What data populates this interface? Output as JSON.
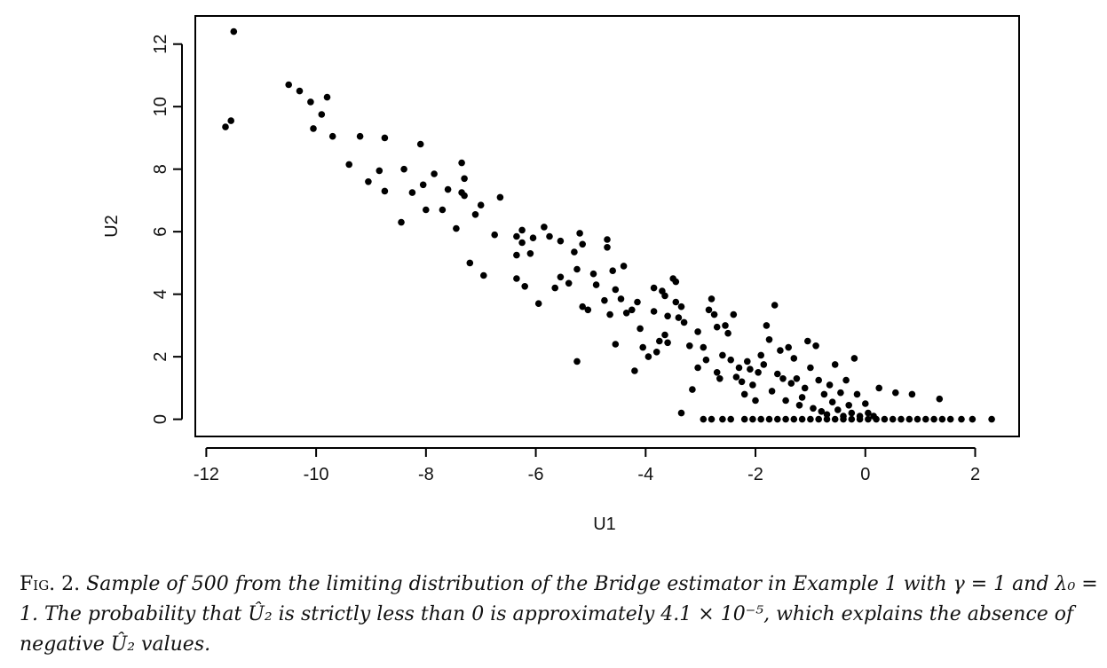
{
  "chart_data": {
    "type": "scatter",
    "title": "",
    "xlabel": "U1",
    "ylabel": "U2",
    "xlim": [
      -12.2,
      2.8
    ],
    "ylim": [
      -0.55,
      12.9
    ],
    "xticks": [
      -12,
      -10,
      -8,
      -6,
      -4,
      -2,
      0,
      2
    ],
    "yticks": [
      0,
      2,
      4,
      6,
      8,
      10,
      12
    ],
    "xtick_labels": [
      "-12",
      "-10",
      "-8",
      "-6",
      "-4",
      "-2",
      "0",
      "2"
    ],
    "ytick_labels": [
      "0",
      "2",
      "4",
      "6",
      "8",
      "10",
      "12"
    ],
    "grid": false,
    "sample_size": 500,
    "points": [
      [
        -11.5,
        12.4
      ],
      [
        -11.55,
        9.55
      ],
      [
        -11.65,
        9.35
      ],
      [
        -10.5,
        10.7
      ],
      [
        -10.3,
        10.5
      ],
      [
        -10.1,
        10.15
      ],
      [
        -10.05,
        9.3
      ],
      [
        -9.9,
        9.75
      ],
      [
        -9.8,
        10.3
      ],
      [
        -9.7,
        9.05
      ],
      [
        -9.4,
        8.15
      ],
      [
        -9.2,
        9.05
      ],
      [
        -9.05,
        7.6
      ],
      [
        -8.85,
        7.95
      ],
      [
        -8.75,
        7.3
      ],
      [
        -8.75,
        9.0
      ],
      [
        -8.45,
        6.3
      ],
      [
        -8.4,
        8.0
      ],
      [
        -8.25,
        7.25
      ],
      [
        -8.1,
        8.8
      ],
      [
        -8.05,
        7.5
      ],
      [
        -8.0,
        6.7
      ],
      [
        -7.85,
        7.85
      ],
      [
        -7.7,
        6.7
      ],
      [
        -7.6,
        7.35
      ],
      [
        -7.45,
        6.1
      ],
      [
        -7.35,
        8.2
      ],
      [
        -7.35,
        7.25
      ],
      [
        -7.3,
        7.7
      ],
      [
        -7.3,
        7.15
      ],
      [
        -7.2,
        5.0
      ],
      [
        -7.1,
        6.55
      ],
      [
        -7.0,
        6.85
      ],
      [
        -6.95,
        4.6
      ],
      [
        -6.75,
        5.9
      ],
      [
        -6.65,
        7.1
      ],
      [
        -6.35,
        5.85
      ],
      [
        -6.35,
        5.25
      ],
      [
        -6.35,
        4.5
      ],
      [
        -6.25,
        6.05
      ],
      [
        -6.25,
        5.65
      ],
      [
        -6.1,
        5.3
      ],
      [
        -6.05,
        5.8
      ],
      [
        -6.2,
        4.25
      ],
      [
        -5.95,
        3.7
      ],
      [
        -5.85,
        6.15
      ],
      [
        -5.75,
        5.85
      ],
      [
        -5.65,
        4.2
      ],
      [
        -5.55,
        5.7
      ],
      [
        -5.55,
        4.55
      ],
      [
        -5.4,
        4.35
      ],
      [
        -5.3,
        5.35
      ],
      [
        -5.25,
        4.8
      ],
      [
        -5.2,
        5.95
      ],
      [
        -5.15,
        5.6
      ],
      [
        -5.15,
        3.6
      ],
      [
        -5.05,
        3.5
      ],
      [
        -5.25,
        1.85
      ],
      [
        -4.95,
        4.65
      ],
      [
        -4.9,
        4.3
      ],
      [
        -4.75,
        3.8
      ],
      [
        -4.7,
        5.75
      ],
      [
        -4.7,
        5.5
      ],
      [
        -4.65,
        3.35
      ],
      [
        -4.6,
        4.75
      ],
      [
        -4.55,
        4.15
      ],
      [
        -4.55,
        2.4
      ],
      [
        -4.45,
        3.85
      ],
      [
        -4.4,
        4.9
      ],
      [
        -4.35,
        3.4
      ],
      [
        -4.25,
        3.5
      ],
      [
        -4.2,
        1.55
      ],
      [
        -4.15,
        3.75
      ],
      [
        -4.1,
        2.9
      ],
      [
        -4.05,
        2.3
      ],
      [
        -3.95,
        2.0
      ],
      [
        -3.85,
        3.45
      ],
      [
        -3.85,
        4.2
      ],
      [
        -3.8,
        2.15
      ],
      [
        -3.75,
        2.5
      ],
      [
        -3.7,
        4.1
      ],
      [
        -3.65,
        2.7
      ],
      [
        -3.65,
        3.95
      ],
      [
        -3.6,
        3.3
      ],
      [
        -3.6,
        2.45
      ],
      [
        -3.5,
        4.5
      ],
      [
        -3.45,
        4.4
      ],
      [
        -3.45,
        3.75
      ],
      [
        -3.4,
        3.25
      ],
      [
        -3.35,
        3.6
      ],
      [
        -3.3,
        3.1
      ],
      [
        -3.35,
        0.2
      ],
      [
        -3.2,
        2.35
      ],
      [
        -3.15,
        0.95
      ],
      [
        -3.05,
        1.65
      ],
      [
        -3.05,
        2.8
      ],
      [
        -2.95,
        2.3
      ],
      [
        -2.9,
        1.9
      ],
      [
        -2.85,
        3.5
      ],
      [
        -2.8,
        3.85
      ],
      [
        -2.75,
        3.35
      ],
      [
        -2.7,
        2.95
      ],
      [
        -2.7,
        1.5
      ],
      [
        -2.65,
        1.3
      ],
      [
        -2.6,
        2.05
      ],
      [
        -2.55,
        3.0
      ],
      [
        -2.5,
        2.75
      ],
      [
        -2.45,
        1.9
      ],
      [
        -2.4,
        3.35
      ],
      [
        -2.35,
        1.35
      ],
      [
        -2.3,
        1.65
      ],
      [
        -2.25,
        1.2
      ],
      [
        -2.2,
        0.8
      ],
      [
        -2.15,
        1.85
      ],
      [
        -2.1,
        1.6
      ],
      [
        -2.05,
        1.1
      ],
      [
        -2.0,
        0.6
      ],
      [
        -1.95,
        1.5
      ],
      [
        -1.9,
        2.05
      ],
      [
        -1.85,
        1.75
      ],
      [
        -1.8,
        3.0
      ],
      [
        -1.75,
        2.55
      ],
      [
        -1.7,
        0.9
      ],
      [
        -1.65,
        3.65
      ],
      [
        -1.6,
        1.45
      ],
      [
        -1.55,
        2.2
      ],
      [
        -1.5,
        1.3
      ],
      [
        -1.45,
        0.6
      ],
      [
        -1.4,
        2.3
      ],
      [
        -1.35,
        1.15
      ],
      [
        -1.3,
        1.95
      ],
      [
        -1.25,
        1.3
      ],
      [
        -1.2,
        0.45
      ],
      [
        -1.15,
        0.7
      ],
      [
        -1.1,
        1.0
      ],
      [
        -1.05,
        2.5
      ],
      [
        -1.0,
        1.65
      ],
      [
        -0.95,
        0.35
      ],
      [
        -0.9,
        2.35
      ],
      [
        -0.85,
        1.25
      ],
      [
        -0.8,
        0.25
      ],
      [
        -0.75,
        0.8
      ],
      [
        -0.7,
        0.15
      ],
      [
        -0.65,
        1.1
      ],
      [
        -0.6,
        0.55
      ],
      [
        -0.55,
        1.75
      ],
      [
        -0.5,
        0.3
      ],
      [
        -0.45,
        0.85
      ],
      [
        -0.4,
        0.1
      ],
      [
        -0.35,
        1.25
      ],
      [
        -0.3,
        0.45
      ],
      [
        -0.25,
        0.2
      ],
      [
        -0.2,
        1.95
      ],
      [
        -0.15,
        0.8
      ],
      [
        -0.1,
        0.1
      ],
      [
        0.0,
        0.5
      ],
      [
        0.05,
        0.2
      ],
      [
        0.15,
        0.1
      ],
      [
        0.25,
        1.0
      ],
      [
        0.55,
        0.85
      ],
      [
        0.85,
        0.8
      ],
      [
        1.35,
        0.65
      ],
      [
        -2.95,
        0
      ],
      [
        -2.8,
        0
      ],
      [
        -2.6,
        0
      ],
      [
        -2.45,
        0
      ],
      [
        -2.2,
        0
      ],
      [
        -2.05,
        0
      ],
      [
        -1.9,
        0
      ],
      [
        -1.75,
        0
      ],
      [
        -1.6,
        0
      ],
      [
        -1.45,
        0
      ],
      [
        -1.3,
        0
      ],
      [
        -1.15,
        0
      ],
      [
        -1.0,
        0
      ],
      [
        -0.85,
        0
      ],
      [
        -0.7,
        0
      ],
      [
        -0.55,
        0
      ],
      [
        -0.4,
        0
      ],
      [
        -0.25,
        0
      ],
      [
        -0.1,
        0
      ],
      [
        0.05,
        0
      ],
      [
        0.2,
        0
      ],
      [
        0.35,
        0
      ],
      [
        0.5,
        0
      ],
      [
        0.65,
        0
      ],
      [
        0.8,
        0
      ],
      [
        0.95,
        0
      ],
      [
        1.1,
        0
      ],
      [
        1.25,
        0
      ],
      [
        1.4,
        0
      ],
      [
        1.55,
        0
      ],
      [
        1.75,
        0
      ],
      [
        1.95,
        0
      ],
      [
        2.3,
        0
      ]
    ]
  },
  "caption": {
    "label": "Fig. 2.",
    "text": "Sample of 500 from the limiting distribution of the Bridge estimator in Example 1 with γ = 1 and λ₀ = 1. The probability that Û₂ is strictly less than 0 is approximately 4.1 × 10⁻⁵, which explains the absence of negative Û₂ values."
  }
}
